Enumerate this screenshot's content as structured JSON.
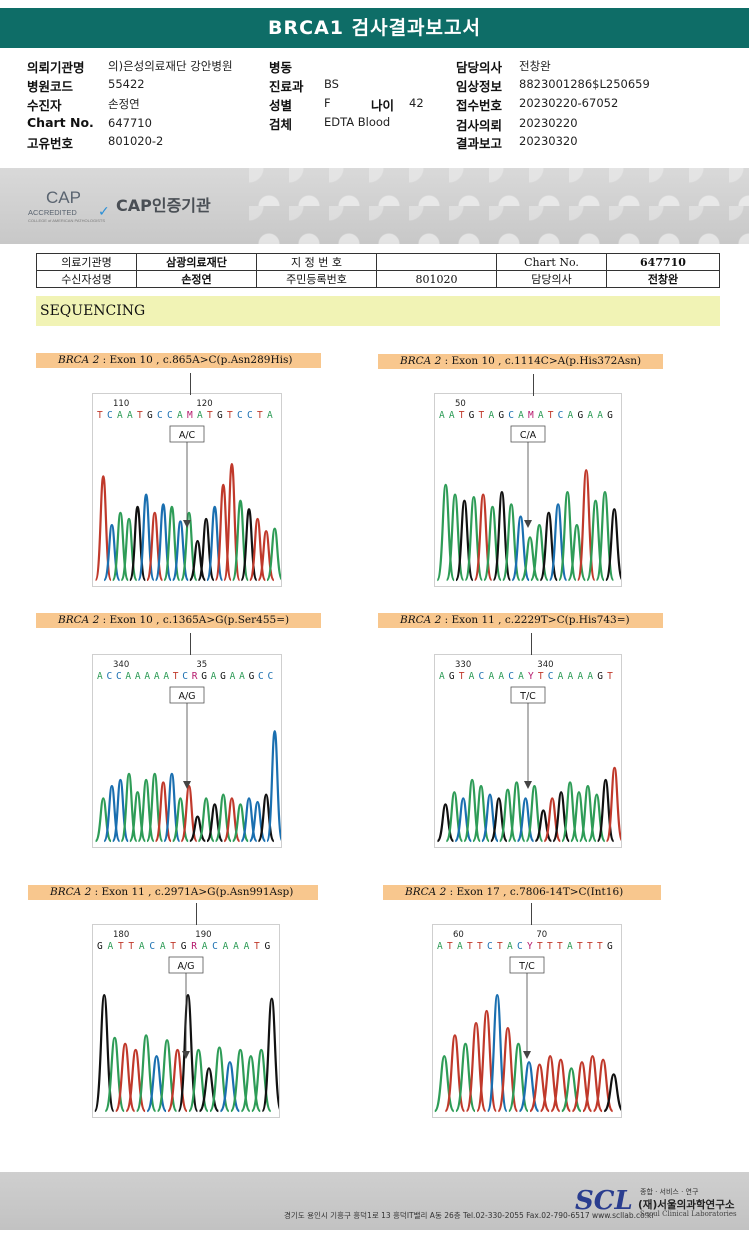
{
  "header": {
    "title": "BRCA1 검사결과보고서"
  },
  "info": {
    "left": [
      {
        "label": "의뢰기관명",
        "value": "의)은성의료재단 강안병원"
      },
      {
        "label": "병원코드",
        "value": "55422"
      },
      {
        "label": "수진자",
        "value": "손정연"
      },
      {
        "label": "Chart No.",
        "value": "647710"
      },
      {
        "label": "고유번호",
        "value": "801020-2"
      }
    ],
    "middle": [
      {
        "label": "병동",
        "value": ""
      },
      {
        "label": "진료과",
        "value": "BS"
      },
      {
        "label": "성별",
        "value": "F"
      },
      {
        "label": "검체",
        "value": "EDTA Blood"
      }
    ],
    "age": {
      "label": "나이",
      "value": "42"
    },
    "right": [
      {
        "label": "담당의사",
        "value": "전창완"
      },
      {
        "label": "임상정보",
        "value": "8823001286$L250659"
      },
      {
        "label": "접수번호",
        "value": "20230220-67052"
      },
      {
        "label": "검사의뢰",
        "value": "20230220"
      },
      {
        "label": "결과보고",
        "value": "20230320"
      }
    ]
  },
  "cap": {
    "logo_word": "CAP",
    "accredited": "ACCREDITED",
    "small": "COLLEGE of AMERICAN PATHOLOGISTS",
    "certified_text": "CAP인증기관"
  },
  "patient_table": {
    "r1": [
      "의료기관명",
      "삼광의료재단",
      "지 정 번 호",
      "",
      "Chart No.",
      "647710"
    ],
    "r2": [
      "수신자성명",
      "손정연",
      "주민등록번호",
      "801020",
      "담당의사",
      "전창완"
    ]
  },
  "sequencing": {
    "title": "SEQUENCING"
  },
  "panels": [
    {
      "gene": "BRCA 2",
      "variant": " : Exon 10 , c.865A>C(p.Asn289His)",
      "call": "A/C",
      "pos1": "110",
      "pos2": "120",
      "seq": "TCAATGCCAMATGTCCTA",
      "colors": [
        "#c0392b",
        "#1a6fb0",
        "#2e9c57",
        "#2e9c57",
        "#111",
        "#1a6fb0",
        "#c0392b",
        "#1a6fb0",
        "#2e9c57",
        "#1a6fb0",
        "#2e9c57",
        "#111",
        "#111",
        "#1a6fb0",
        "#c0392b",
        "#c0392b",
        "#2e9c57",
        "#111",
        "#c0392b",
        "#c0392b",
        "#2e9c57"
      ],
      "heights": [
        0.85,
        0.45,
        0.55,
        0.5,
        0.6,
        0.7,
        0.55,
        0.62,
        0.6,
        0.48,
        0.55,
        0.32,
        0.5,
        0.6,
        0.78,
        0.95,
        0.65,
        0.58,
        0.5,
        0.4,
        0.42
      ]
    },
    {
      "gene": "BRCA 2",
      "variant": " : Exon 10 , c.1114C>A(p.His372Asn)",
      "call": "C/A",
      "pos1": "50",
      "pos2": "",
      "seq": "AATGTAGCAMATCAGAAG",
      "colors": [
        "#2e9c57",
        "#2e9c57",
        "#111",
        "#2e9c57",
        "#c0392b",
        "#2e9c57",
        "#111",
        "#2e9c57",
        "#1a6fb0",
        "#2e9c57",
        "#2e9c57",
        "#111",
        "#1a6fb0",
        "#2e9c57",
        "#2e9c57",
        "#c0392b",
        "#2e9c57",
        "#2e9c57",
        "#111"
      ],
      "heights": [
        0.78,
        0.7,
        0.65,
        0.68,
        0.7,
        0.6,
        0.72,
        0.62,
        0.52,
        0.35,
        0.45,
        0.55,
        0.62,
        0.72,
        0.45,
        0.9,
        0.65,
        0.72,
        0.58
      ]
    },
    {
      "gene": "BRCA 2",
      "variant": " : Exon 10 , c.1365A>G(p.Ser455=)",
      "call": "A/G",
      "pos1": "340",
      "pos2": "35",
      "seq": "ACCAAAAATCRGAGAAGCC",
      "colors": [
        "#2e9c57",
        "#1a6fb0",
        "#1a6fb0",
        "#2e9c57",
        "#2e9c57",
        "#2e9c57",
        "#2e9c57",
        "#c0392b",
        "#1a6fb0",
        "#2e9c57",
        "#c0392b",
        "#111",
        "#2e9c57",
        "#111",
        "#2e9c57",
        "#c0392b",
        "#2e9c57",
        "#1a6fb0",
        "#1a6fb0",
        "#111",
        "#1a6fb0"
      ],
      "heights": [
        0.35,
        0.45,
        0.5,
        0.55,
        0.4,
        0.5,
        0.55,
        0.48,
        0.55,
        0.35,
        0.45,
        0.2,
        0.35,
        0.3,
        0.38,
        0.35,
        0.3,
        0.35,
        0.32,
        0.38,
        0.9
      ]
    },
    {
      "gene": "BRCA 2",
      "variant": " : Exon 11 , c.2229T>C(p.His743=)",
      "call": "T/C",
      "pos1": "330",
      "pos2": "340",
      "seq": "AGTACAACAYTCAAAAGT",
      "colors": [
        "#111",
        "#2e9c57",
        "#1a6fb0",
        "#2e9c57",
        "#2e9c57",
        "#1a6fb0",
        "#111",
        "#2e9c57",
        "#2e9c57",
        "#1a6fb0",
        "#2e9c57",
        "#111",
        "#c0392b",
        "#111",
        "#2e9c57",
        "#2e9c57",
        "#2e9c57",
        "#2e9c57",
        "#111",
        "#c0392b"
      ],
      "heights": [
        0.3,
        0.4,
        0.35,
        0.5,
        0.45,
        0.38,
        0.35,
        0.42,
        0.48,
        0.35,
        0.45,
        0.25,
        0.35,
        0.4,
        0.48,
        0.4,
        0.45,
        0.38,
        0.5,
        0.6
      ]
    },
    {
      "gene": "BRCA 2",
      "variant": " : Exon 11 , c.2971A>G(p.Asn991Asp)",
      "call": "A/G",
      "pos1": "180",
      "pos2": "190",
      "seq": "GATTACATGRACAAATG",
      "colors": [
        "#111",
        "#2e9c57",
        "#c0392b",
        "#c0392b",
        "#2e9c57",
        "#1a6fb0",
        "#2e9c57",
        "#c0392b",
        "#111",
        "#2e9c57",
        "#111",
        "#2e9c57",
        "#1a6fb0",
        "#2e9c57",
        "#2e9c57",
        "#2e9c57",
        "#111"
      ],
      "heights": [
        0.95,
        0.6,
        0.55,
        0.5,
        0.62,
        0.45,
        0.58,
        0.5,
        0.95,
        0.5,
        0.35,
        0.52,
        0.4,
        0.5,
        0.45,
        0.5,
        0.92
      ]
    },
    {
      "gene": "BRCA 2",
      "variant": " : Exon 17 , c.7806-14T>C(Int16)",
      "call": "T/C",
      "pos1": "60",
      "pos2": "70",
      "seq": "ATATTCTACYTTTATTTG",
      "colors": [
        "#2e9c57",
        "#c0392b",
        "#2e9c57",
        "#c0392b",
        "#c0392b",
        "#1a6fb0",
        "#c0392b",
        "#2e9c57",
        "#1a6fb0",
        "#c0392b",
        "#c0392b",
        "#c0392b",
        "#2e9c57",
        "#c0392b",
        "#c0392b",
        "#c0392b",
        "#111"
      ],
      "heights": [
        0.45,
        0.62,
        0.55,
        0.72,
        0.82,
        0.95,
        0.68,
        0.55,
        0.4,
        0.38,
        0.45,
        0.42,
        0.35,
        0.4,
        0.45,
        0.42,
        0.3
      ]
    }
  ],
  "footer": {
    "address": "경기도 용인시 기흥구 흥덕1로 13 흥덕IT밸리 A동 26층   Tel.02-330-2055  Fax.02-790-6517  www.scllab.co.kr",
    "logo": "SCL",
    "tagline": "종합 · 서비스 · 연구",
    "name": "(재)서울의과학연구소",
    "name_en": "Seoul Clinical Laboratories"
  }
}
